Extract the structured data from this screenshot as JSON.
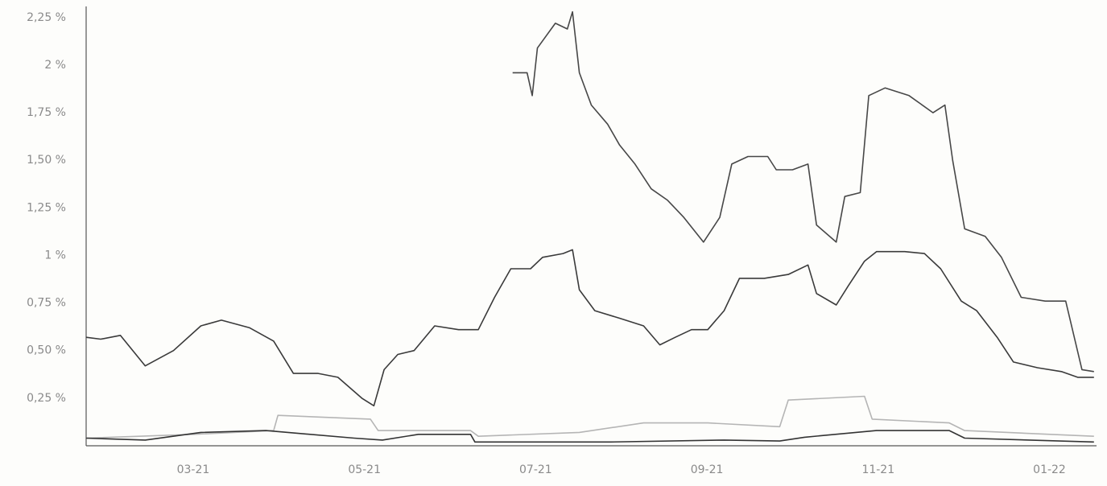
{
  "chart_data": {
    "type": "line",
    "xlim": [
      0.75,
      12.55
    ],
    "xticks": [
      {
        "value": 2,
        "label": "03-21"
      },
      {
        "value": 4,
        "label": "05-21"
      },
      {
        "value": 6,
        "label": "07-21"
      },
      {
        "value": 8,
        "label": "09-21"
      },
      {
        "value": 10,
        "label": "11-21"
      },
      {
        "value": 12,
        "label": "01-22"
      }
    ],
    "ylim": [
      0,
      2.3
    ],
    "yticks": [
      {
        "value": 0.25,
        "label": "0,25 %"
      },
      {
        "value": 0.5,
        "label": "0,50 %"
      },
      {
        "value": 0.75,
        "label": "0,75 %"
      },
      {
        "value": 1,
        "label": "1 %"
      },
      {
        "value": 1.25,
        "label": "1,25 %"
      },
      {
        "value": 1.5,
        "label": "1,50 %"
      },
      {
        "value": 1.75,
        "label": "1,75 %"
      },
      {
        "value": 2,
        "label": "2 %"
      },
      {
        "value": 2.25,
        "label": "2,25 %"
      }
    ],
    "grid": false,
    "series": [
      {
        "color": "#3a3a3a",
        "x": [
          0.75,
          0.92,
          1.15,
          1.44,
          1.77,
          2.09,
          2.33,
          2.66,
          2.94,
          3.17,
          3.46,
          3.69,
          3.97,
          4.11,
          4.23,
          4.39,
          4.58,
          4.82,
          5.1,
          5.33,
          5.52,
          5.71,
          5.94,
          6.08,
          6.32,
          6.43,
          6.51,
          6.69,
          6.98,
          7.26,
          7.45,
          7.63,
          7.82,
          8.01,
          8.2,
          8.38,
          8.67,
          8.95,
          9.18,
          9.28,
          9.51,
          9.65,
          9.84,
          9.98,
          10.31,
          10.54,
          10.73,
          10.97,
          11.15,
          11.39,
          11.58,
          11.86,
          12.14,
          12.33,
          12.52
        ],
        "values": [
          0.57,
          0.56,
          0.58,
          0.42,
          0.5,
          0.63,
          0.66,
          0.62,
          0.55,
          0.38,
          0.38,
          0.36,
          0.25,
          0.21,
          0.4,
          0.48,
          0.5,
          0.63,
          0.61,
          0.61,
          0.78,
          0.93,
          0.93,
          0.99,
          1.01,
          1.03,
          0.82,
          0.71,
          0.67,
          0.63,
          0.53,
          0.57,
          0.61,
          0.61,
          0.71,
          0.88,
          0.88,
          0.9,
          0.95,
          0.8,
          0.74,
          0.84,
          0.97,
          1.02,
          1.02,
          1.01,
          0.93,
          0.76,
          0.71,
          0.57,
          0.44,
          0.41,
          0.39,
          0.36,
          0.36
        ]
      },
      {
        "color": "#474747",
        "x": [
          5.73,
          5.9,
          5.96,
          6.02,
          6.23,
          6.37,
          6.43,
          6.51,
          6.65,
          6.84,
          6.98,
          7.16,
          7.35,
          7.54,
          7.73,
          7.96,
          8.15,
          8.29,
          8.48,
          8.71,
          8.81,
          9.0,
          9.18,
          9.28,
          9.51,
          9.61,
          9.79,
          9.89,
          10.08,
          10.36,
          10.64,
          10.78,
          10.87,
          11.01,
          11.25,
          11.44,
          11.67,
          11.95,
          12.19,
          12.38,
          12.52
        ],
        "values": [
          1.96,
          1.96,
          1.84,
          2.09,
          2.22,
          2.19,
          2.28,
          1.96,
          1.79,
          1.69,
          1.58,
          1.48,
          1.35,
          1.29,
          1.2,
          1.07,
          1.2,
          1.48,
          1.52,
          1.52,
          1.45,
          1.45,
          1.48,
          1.16,
          1.07,
          1.31,
          1.33,
          1.84,
          1.88,
          1.84,
          1.75,
          1.79,
          1.5,
          1.14,
          1.1,
          0.99,
          0.78,
          0.76,
          0.76,
          0.4,
          0.39
        ]
      },
      {
        "color": "#b5b5b5",
        "x": [
          0.75,
          2,
          2.94,
          2.99,
          4.07,
          4.16,
          5.24,
          5.33,
          6.51,
          7.26,
          8.01,
          8.85,
          8.95,
          9.84,
          9.93,
          10.83,
          11.01,
          12.52
        ],
        "values": [
          0.04,
          0.06,
          0.08,
          0.16,
          0.14,
          0.08,
          0.08,
          0.05,
          0.07,
          0.12,
          0.12,
          0.1,
          0.24,
          0.26,
          0.14,
          0.12,
          0.08,
          0.05
        ]
      },
      {
        "color": "#333333",
        "x": [
          0.75,
          1.44,
          2.09,
          2.85,
          3.88,
          4.21,
          4.63,
          5.24,
          5.29,
          6.88,
          8.2,
          8.85,
          9.14,
          9.98,
          10.83,
          11.01,
          12.52
        ],
        "values": [
          0.04,
          0.03,
          0.07,
          0.08,
          0.04,
          0.03,
          0.06,
          0.06,
          0.02,
          0.02,
          0.03,
          0.025,
          0.045,
          0.08,
          0.08,
          0.04,
          0.02
        ]
      }
    ]
  }
}
